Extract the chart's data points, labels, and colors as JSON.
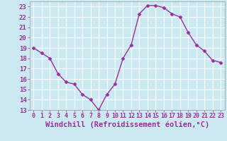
{
  "x": [
    0,
    1,
    2,
    3,
    4,
    5,
    6,
    7,
    8,
    9,
    10,
    11,
    12,
    13,
    14,
    15,
    16,
    17,
    18,
    19,
    20,
    21,
    22,
    23
  ],
  "y": [
    19,
    18.5,
    18,
    16.5,
    15.7,
    15.5,
    14.5,
    14,
    13,
    14.5,
    15.5,
    18,
    19.3,
    22.3,
    23.1,
    23.1,
    22.9,
    22.3,
    22,
    20.5,
    19.3,
    18.7,
    17.8,
    17.6
  ],
  "line_color": "#993399",
  "marker": "D",
  "marker_size": 2.5,
  "bg_color": "#cce8f0",
  "grid_color": "#ffffff",
  "xlabel": "Windchill (Refroidissement éolien,°C)",
  "xlabel_color": "#993399",
  "tick_color": "#993399",
  "ylim": [
    13,
    23.5
  ],
  "xlim": [
    -0.5,
    23.5
  ],
  "yticks": [
    13,
    14,
    15,
    16,
    17,
    18,
    19,
    20,
    21,
    22,
    23
  ],
  "xticks": [
    0,
    1,
    2,
    3,
    4,
    5,
    6,
    7,
    8,
    9,
    10,
    11,
    12,
    13,
    14,
    15,
    16,
    17,
    18,
    19,
    20,
    21,
    22,
    23
  ],
  "linewidth": 1.0,
  "tick_fontsize": 6,
  "xlabel_fontsize": 7.5,
  "figsize": [
    3.2,
    2.0
  ],
  "dpi": 100
}
